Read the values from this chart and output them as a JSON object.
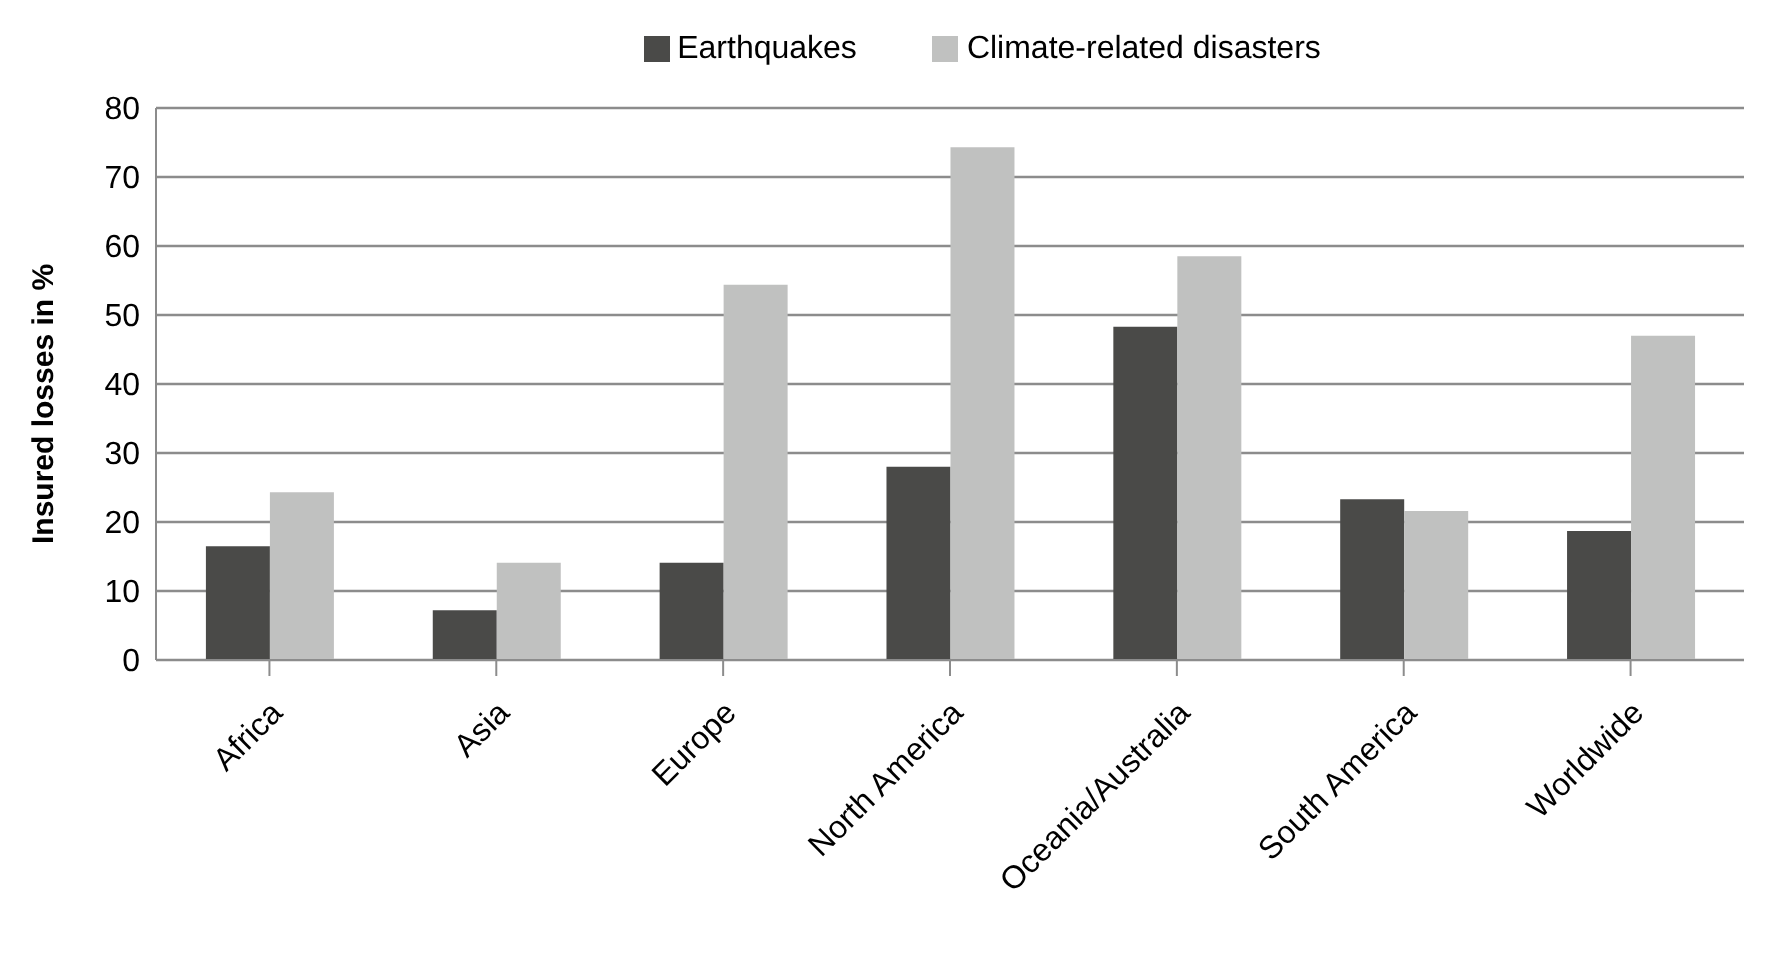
{
  "chart_data": {
    "type": "bar",
    "ylabel": "Insured losses in %",
    "categories": [
      "Africa",
      "Asia",
      "Europe",
      "North America",
      "Oceania/Australia",
      "South America",
      "Worldwide"
    ],
    "series": [
      {
        "name": "Earthquakes",
        "color": "#4a4a48",
        "values": [
          16.5,
          7.2,
          14.1,
          28.0,
          48.3,
          23.3,
          18.7
        ]
      },
      {
        "name": "Climate-related disasters",
        "color": "#c0c1c0",
        "values": [
          24.3,
          14.1,
          54.4,
          74.3,
          58.5,
          21.6,
          47.0
        ]
      }
    ],
    "ylim": [
      0,
      80
    ],
    "yticks": [
      0,
      10,
      20,
      30,
      40,
      50,
      60,
      70,
      80
    ],
    "grid": "y",
    "legend": "top"
  }
}
